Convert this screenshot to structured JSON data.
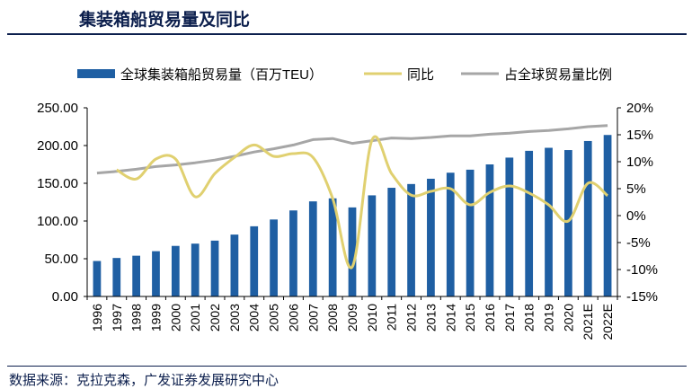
{
  "header": {
    "title": "集装箱船贸易量及同比"
  },
  "footer": {
    "source": "数据来源：克拉克森，广发证券发展研究中心"
  },
  "chart_data": {
    "type": "bar",
    "categories": [
      "1996",
      "1997",
      "1998",
      "1999",
      "2000",
      "2001",
      "2002",
      "2003",
      "2004",
      "2005",
      "2006",
      "2007",
      "2008",
      "2009",
      "2010",
      "2011",
      "2012",
      "2013",
      "2014",
      "2015",
      "2016",
      "2017",
      "2018",
      "2019",
      "2020",
      "2021E",
      "2022E"
    ],
    "series": [
      {
        "name": "全球集装箱船贸易量（百万TEU）",
        "type": "bar",
        "axis": "left",
        "color": "#1f5fa3",
        "values": [
          47,
          51,
          54,
          60,
          67,
          70,
          74,
          82,
          93,
          102,
          114,
          126,
          130,
          118,
          134,
          144,
          149,
          156,
          164,
          168,
          175,
          184,
          193,
          197,
          194,
          206,
          214
        ]
      },
      {
        "name": "同比",
        "type": "line",
        "axis": "right",
        "color": "#e0d070",
        "values": [
          null,
          8.5,
          6.8,
          10.5,
          10.5,
          3.5,
          7.8,
          10.8,
          13.1,
          11.0,
          11.5,
          10.8,
          3.2,
          -9.5,
          14.0,
          7.8,
          3.8,
          4.5,
          5.0,
          2.0,
          4.3,
          5.5,
          4.2,
          2.0,
          -1.0,
          6.0,
          3.7
        ]
      },
      {
        "name": "占全球贸易量比例",
        "type": "line",
        "axis": "right",
        "color": "#a6a6a6",
        "values": [
          7.9,
          8.2,
          8.6,
          9.1,
          9.4,
          9.8,
          10.3,
          11.0,
          11.8,
          12.4,
          13.1,
          14.1,
          14.3,
          13.4,
          13.9,
          14.4,
          14.3,
          14.5,
          14.8,
          14.8,
          15.1,
          15.3,
          15.6,
          15.8,
          16.1,
          16.5,
          16.7
        ]
      }
    ],
    "left_axis": {
      "ylim": [
        0,
        250
      ],
      "ticks": [
        "0.00",
        "50.00",
        "100.00",
        "150.00",
        "200.00",
        "250.00"
      ]
    },
    "right_axis": {
      "ylim": [
        -15,
        20
      ],
      "ticks": [
        "-15%",
        "-10%",
        "-5%",
        "0%",
        "5%",
        "10%",
        "15%",
        "20%"
      ]
    },
    "legend_position": "top",
    "grid": false
  }
}
